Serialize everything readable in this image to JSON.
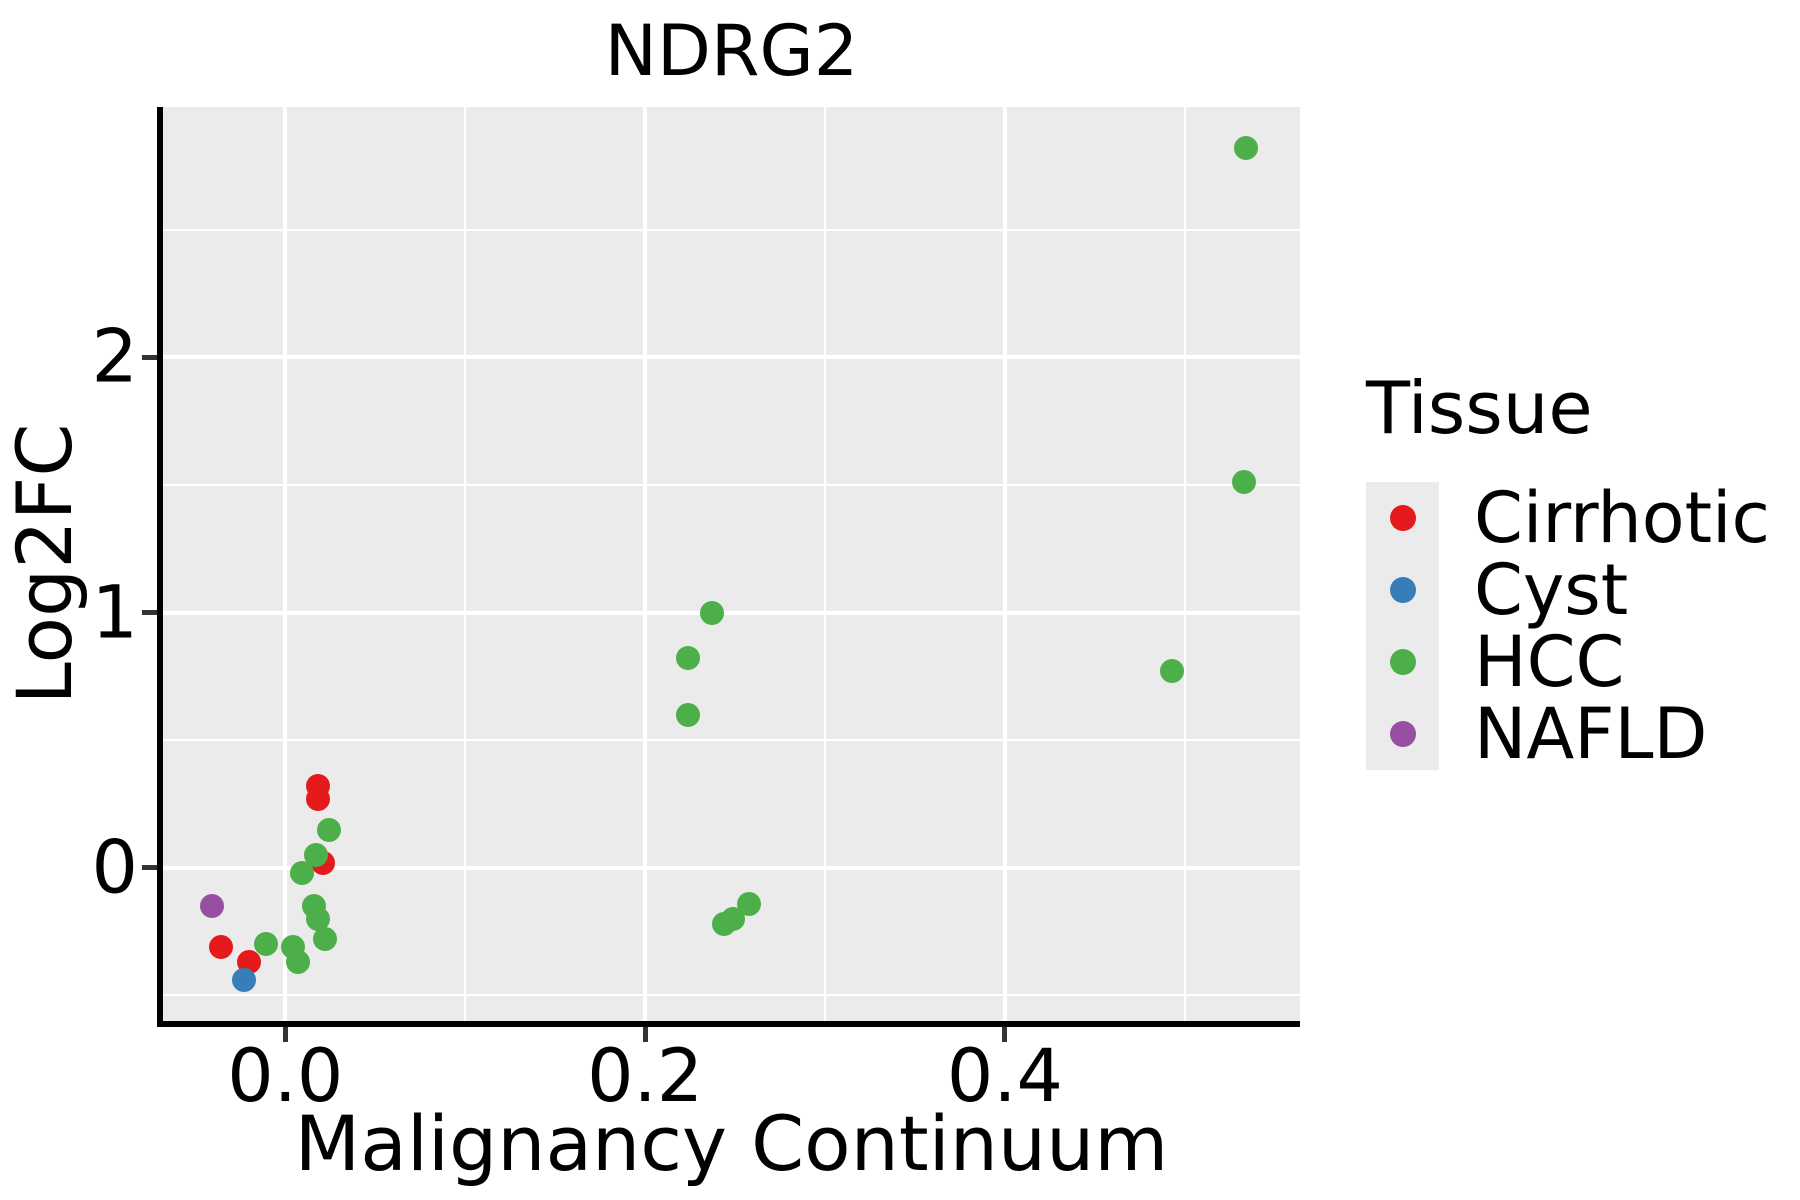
{
  "title": "NDRG2",
  "axes": {
    "x": {
      "label": "Malignancy Continuum"
    },
    "y": {
      "label": "Log2FC"
    }
  },
  "legend": {
    "title": "Tissue"
  },
  "colors": {
    "panel_background": "#EBEBEB",
    "gridline": "#FFFFFF",
    "spine": "#000000",
    "tick": "#333333",
    "legend_key_background": "#EBEBEB"
  },
  "chart_data": {
    "type": "scatter",
    "title": "NDRG2",
    "xlabel": "Malignancy Continuum",
    "ylabel": "Log2FC",
    "xlim": [
      -0.068,
      0.564
    ],
    "ylim": [
      -0.6,
      2.98
    ],
    "grid": true,
    "x_ticks": [
      {
        "value": 0.0,
        "label": "0.0"
      },
      {
        "value": 0.2,
        "label": "0.2"
      },
      {
        "value": 0.4,
        "label": "0.4"
      }
    ],
    "y_ticks": [
      {
        "value": 0,
        "label": "0"
      },
      {
        "value": 1,
        "label": "1"
      },
      {
        "value": 2,
        "label": "2"
      }
    ],
    "x_major_gridlines": [
      0.0,
      0.2,
      0.4
    ],
    "x_minor_gridlines": [
      0.1,
      0.3,
      0.5
    ],
    "y_major_gridlines": [
      0,
      1,
      2
    ],
    "y_minor_gridlines": [
      -0.5,
      0.5,
      1.5,
      2.5
    ],
    "legend_title": "Tissue",
    "legend_position": "right",
    "series": [
      {
        "name": "Cirrhotic",
        "color": "#E41A1C",
        "points": [
          [
            0.018,
            0.32
          ],
          [
            0.018,
            0.27
          ],
          [
            0.021,
            0.02
          ],
          [
            -0.036,
            -0.31
          ],
          [
            -0.02,
            -0.37
          ]
        ]
      },
      {
        "name": "Cyst",
        "color": "#377EB8",
        "points": [
          [
            -0.023,
            -0.44
          ]
        ]
      },
      {
        "name": "HCC",
        "color": "#4DAF4A",
        "points": [
          [
            0.024,
            0.15
          ],
          [
            0.017,
            0.05
          ],
          [
            0.009,
            -0.02
          ],
          [
            0.016,
            -0.15
          ],
          [
            0.018,
            -0.2
          ],
          [
            0.022,
            -0.28
          ],
          [
            -0.011,
            -0.3
          ],
          [
            0.004,
            -0.31
          ],
          [
            0.007,
            -0.37
          ],
          [
            0.237,
            1.0
          ],
          [
            0.224,
            0.82
          ],
          [
            0.224,
            0.6
          ],
          [
            0.258,
            -0.14
          ],
          [
            0.249,
            -0.2
          ],
          [
            0.244,
            -0.22
          ],
          [
            0.534,
            2.82
          ],
          [
            0.533,
            1.51
          ],
          [
            0.493,
            0.77
          ]
        ]
      },
      {
        "name": "NAFLD",
        "color": "#984EA3",
        "points": [
          [
            -0.041,
            -0.15
          ]
        ]
      }
    ]
  }
}
